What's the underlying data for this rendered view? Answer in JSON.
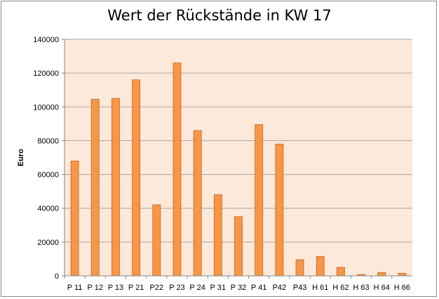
{
  "chart_data": {
    "type": "bar",
    "title": "Wert der Rückstände in KW 17",
    "xlabel": "",
    "ylabel": "Euro",
    "ylim": [
      0,
      140000
    ],
    "yticks": [
      0,
      20000,
      40000,
      60000,
      80000,
      100000,
      120000,
      140000
    ],
    "grid": true,
    "legend": "none",
    "categories": [
      "P 11",
      "P 12",
      "P 13",
      "P 21",
      "P22",
      "P 23",
      "P 24",
      "P 31",
      "P 32",
      "P 41",
      "P42",
      "P43",
      "H 61",
      "H 62",
      "H 63",
      "H 64",
      "H 66"
    ],
    "values": [
      68000,
      104500,
      105000,
      116000,
      42000,
      126000,
      86000,
      48000,
      35000,
      89500,
      78000,
      9500,
      11500,
      5000,
      800,
      2000,
      1500
    ],
    "colors": {
      "bar_fill": "#f79646",
      "bar_stroke": "#c0642a",
      "plot_bg": "#fde9d9",
      "grid": "#a6a6a6"
    }
  }
}
